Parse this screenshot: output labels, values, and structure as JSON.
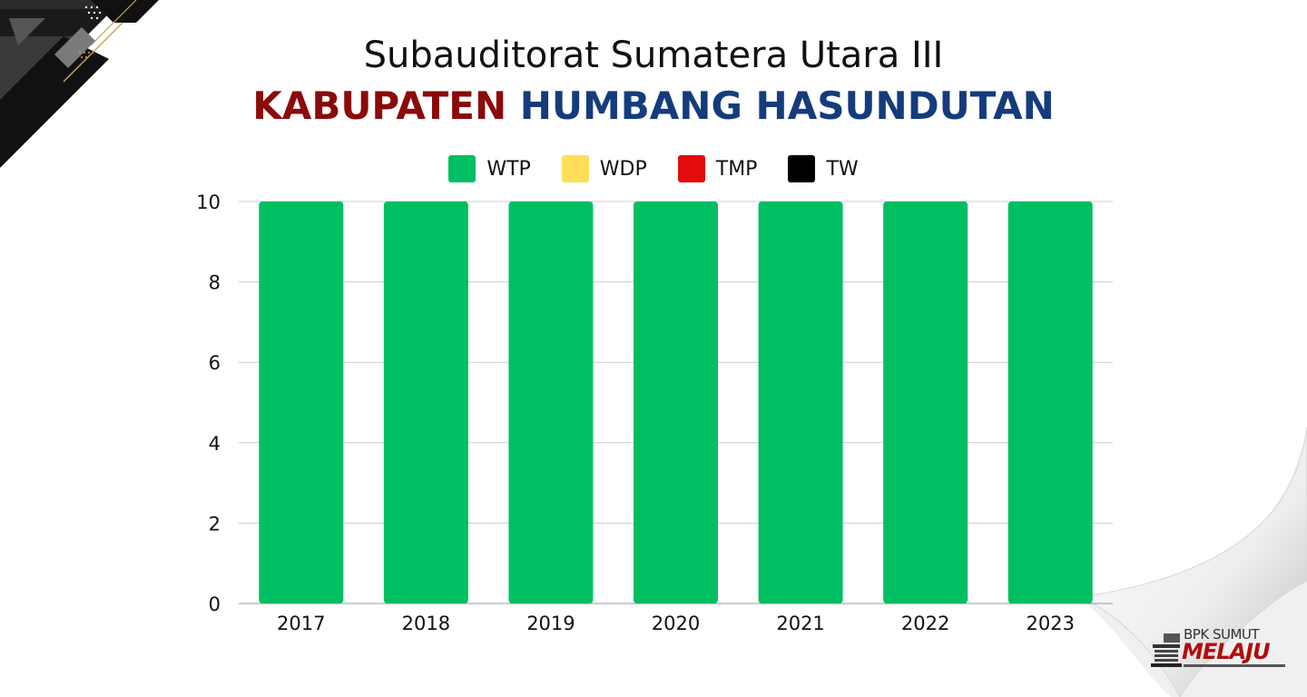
{
  "header": {
    "title_line1": "Subauditorat Sumatera Utara III",
    "title_line2_part1": "KABUPATEN",
    "title_line2_part2": "HUMBANG HASUNDUTAN"
  },
  "colors": {
    "title_red": "#8b0a0a",
    "title_blue": "#143c7c",
    "wtp": "#00bf63",
    "wdp": "#ffde59",
    "tmp": "#e30b0b",
    "tw": "#000000",
    "grid": "#cccccc"
  },
  "legend": [
    {
      "label": "WTP",
      "color": "#00bf63"
    },
    {
      "label": "WDP",
      "color": "#ffde59"
    },
    {
      "label": "TMP",
      "color": "#e30b0b"
    },
    {
      "label": "TW",
      "color": "#000000"
    }
  ],
  "chart_data": {
    "type": "bar",
    "stacked": true,
    "categories": [
      "2017",
      "2018",
      "2019",
      "2020",
      "2021",
      "2022",
      "2023"
    ],
    "series": [
      {
        "name": "WTP",
        "values": [
          10,
          10,
          10,
          10,
          10,
          10,
          10
        ]
      },
      {
        "name": "WDP",
        "values": [
          0,
          0,
          0,
          0,
          0,
          0,
          0
        ]
      },
      {
        "name": "TMP",
        "values": [
          0,
          0,
          0,
          0,
          0,
          0,
          0
        ]
      },
      {
        "name": "TW",
        "values": [
          0,
          0,
          0,
          0,
          0,
          0,
          0
        ]
      }
    ],
    "title": "",
    "xlabel": "",
    "ylabel": "",
    "ylim": [
      0,
      10
    ],
    "yticks": [
      0,
      2,
      4,
      6,
      8,
      10
    ],
    "grid": true,
    "legend_position": "top-center"
  },
  "logo": {
    "top_text": "BPK SUMUT",
    "main_text": "MELAJU",
    "icon": "building-icon"
  },
  "decorations": {
    "corner": "geometric-corner-decoration",
    "curl": "page-curl-decoration"
  }
}
